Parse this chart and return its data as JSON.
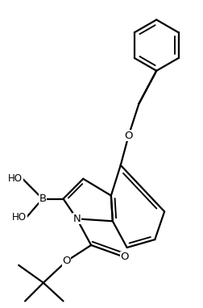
{
  "background_color": "#ffffff",
  "line_color": "#000000",
  "line_width": 1.6,
  "figsize": [
    2.52,
    3.82
  ],
  "dpi": 100,
  "xlim": [
    0,
    10
  ],
  "ylim": [
    0,
    15.2
  ]
}
